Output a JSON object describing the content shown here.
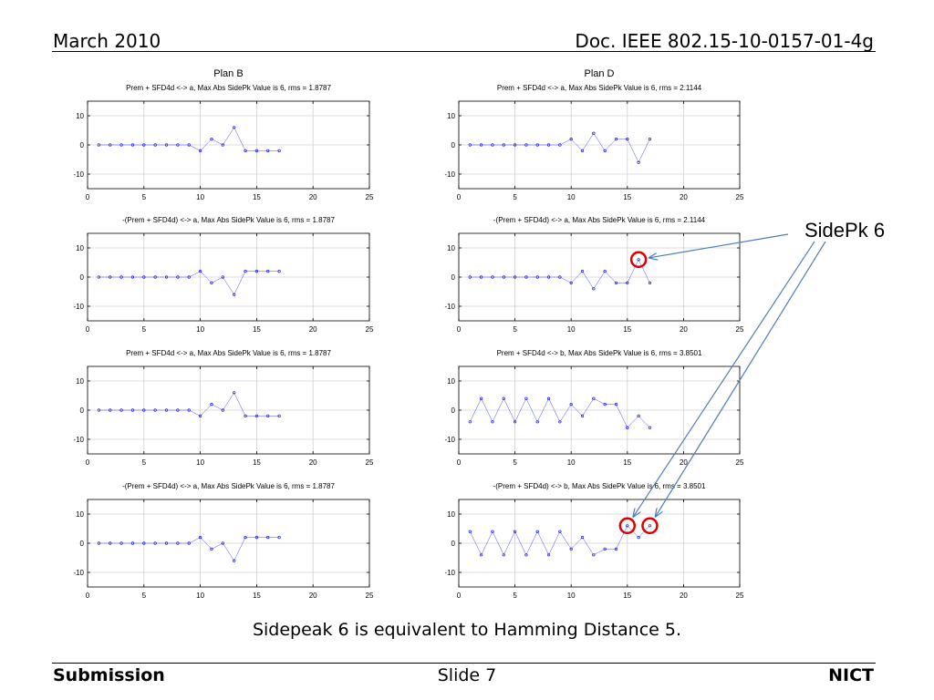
{
  "header": {
    "left": "March 2010",
    "right": "Doc. IEEE 802.15-10-0157-01-4g"
  },
  "footer": {
    "left": "Submission",
    "center": "Slide 7",
    "right": "NICT"
  },
  "caption": "Sidepeak 6 is equivalent to Hamming Distance 5.",
  "annotation": {
    "label": "SidePk 6",
    "arrow_color": "#4a7ebb",
    "circle_color": "#e00000"
  },
  "colors": {
    "series": "#0000ff",
    "grid": "#d0d0d0"
  },
  "chart_data": [
    {
      "type": "line",
      "heading": "Plan B",
      "title": "Prem + SFD4d <-> a, Max Abs SidePk Value is 6, rms = 1.8787",
      "xlim": [
        0,
        25
      ],
      "ylim": [
        -15,
        15
      ],
      "xticks": [
        0,
        5,
        10,
        15,
        20,
        25
      ],
      "yticks": [
        10,
        0,
        -10
      ],
      "grid": true,
      "x": [
        1,
        2,
        3,
        4,
        5,
        6,
        7,
        8,
        9,
        10,
        11,
        12,
        13,
        14,
        15,
        16,
        17
      ],
      "y": [
        0,
        0,
        0,
        0,
        0,
        0,
        0,
        0,
        0,
        -2,
        2,
        0,
        6,
        -2,
        -2,
        -2,
        -2
      ]
    },
    {
      "type": "line",
      "heading": "Plan D",
      "title": "Prem + SFD4d <-> a, Max Abs SidePk Value is 6, rms = 2.1144",
      "xlim": [
        0,
        25
      ],
      "ylim": [
        -15,
        15
      ],
      "xticks": [
        0,
        5,
        10,
        15,
        20,
        25
      ],
      "yticks": [
        10,
        0,
        -10
      ],
      "grid": true,
      "x": [
        1,
        2,
        3,
        4,
        5,
        6,
        7,
        8,
        9,
        10,
        11,
        12,
        13,
        14,
        15,
        16,
        17
      ],
      "y": [
        0,
        0,
        0,
        0,
        0,
        0,
        0,
        0,
        0,
        2,
        -2,
        4,
        -2,
        2,
        2,
        -6,
        2
      ]
    },
    {
      "type": "line",
      "heading": "",
      "title": "-(Prem + SFD4d) <-> a, Max Abs SidePk Value is 6, rms = 1.8787",
      "xlim": [
        0,
        25
      ],
      "ylim": [
        -15,
        15
      ],
      "xticks": [
        0,
        5,
        10,
        15,
        20,
        25
      ],
      "yticks": [
        10,
        0,
        -10
      ],
      "grid": true,
      "x": [
        1,
        2,
        3,
        4,
        5,
        6,
        7,
        8,
        9,
        10,
        11,
        12,
        13,
        14,
        15,
        16,
        17
      ],
      "y": [
        0,
        0,
        0,
        0,
        0,
        0,
        0,
        0,
        0,
        2,
        -2,
        0,
        -6,
        2,
        2,
        2,
        2
      ]
    },
    {
      "type": "line",
      "heading": "",
      "title": "-(Prem + SFD4d) <-> a, Max Abs SidePk Value is 6, rms = 2.1144",
      "xlim": [
        0,
        25
      ],
      "ylim": [
        -15,
        15
      ],
      "xticks": [
        0,
        5,
        10,
        15,
        20,
        25
      ],
      "yticks": [
        10,
        0,
        -10
      ],
      "grid": true,
      "x": [
        1,
        2,
        3,
        4,
        5,
        6,
        7,
        8,
        9,
        10,
        11,
        12,
        13,
        14,
        15,
        16,
        17
      ],
      "y": [
        0,
        0,
        0,
        0,
        0,
        0,
        0,
        0,
        0,
        -2,
        2,
        -4,
        2,
        -2,
        -2,
        6,
        -2
      ],
      "highlight_x": [
        16
      ]
    },
    {
      "type": "line",
      "heading": "",
      "title": "Prem + SFD4d <-> a, Max Abs SidePk Value is 6, rms = 1.8787",
      "xlim": [
        0,
        25
      ],
      "ylim": [
        -15,
        15
      ],
      "xticks": [
        0,
        5,
        10,
        15,
        20,
        25
      ],
      "yticks": [
        10,
        0,
        -10
      ],
      "grid": true,
      "x": [
        1,
        2,
        3,
        4,
        5,
        6,
        7,
        8,
        9,
        10,
        11,
        12,
        13,
        14,
        15,
        16,
        17
      ],
      "y": [
        0,
        0,
        0,
        0,
        0,
        0,
        0,
        0,
        0,
        -2,
        2,
        0,
        6,
        -2,
        -2,
        -2,
        -2
      ]
    },
    {
      "type": "line",
      "heading": "",
      "title": "Prem + SFD4d <-> b, Max Abs SidePk Value is 6, rms = 3.8501",
      "xlim": [
        0,
        25
      ],
      "ylim": [
        -15,
        15
      ],
      "xticks": [
        0,
        5,
        10,
        15,
        20,
        25
      ],
      "yticks": [
        10,
        0,
        -10
      ],
      "grid": true,
      "x": [
        1,
        2,
        3,
        4,
        5,
        6,
        7,
        8,
        9,
        10,
        11,
        12,
        13,
        14,
        15,
        16,
        17
      ],
      "y": [
        -4,
        4,
        -4,
        4,
        -4,
        4,
        -4,
        4,
        -4,
        2,
        -2,
        4,
        2,
        2,
        -6,
        -2,
        -6
      ]
    },
    {
      "type": "line",
      "heading": "",
      "title": "-(Prem + SFD4d) <-> a, Max Abs SidePk Value is 6, rms = 1.8787",
      "xlim": [
        0,
        25
      ],
      "ylim": [
        -15,
        15
      ],
      "xticks": [
        0,
        5,
        10,
        15,
        20,
        25
      ],
      "yticks": [
        10,
        0,
        -10
      ],
      "grid": true,
      "x": [
        1,
        2,
        3,
        4,
        5,
        6,
        7,
        8,
        9,
        10,
        11,
        12,
        13,
        14,
        15,
        16,
        17
      ],
      "y": [
        0,
        0,
        0,
        0,
        0,
        0,
        0,
        0,
        0,
        2,
        -2,
        0,
        -6,
        2,
        2,
        2,
        2
      ]
    },
    {
      "type": "line",
      "heading": "",
      "title": "-(Prem + SFD4d) <-> b, Max Abs SidePk Value is 6, rms = 3.8501",
      "xlim": [
        0,
        25
      ],
      "ylim": [
        -15,
        15
      ],
      "xticks": [
        0,
        5,
        10,
        15,
        20,
        25
      ],
      "yticks": [
        10,
        0,
        -10
      ],
      "grid": true,
      "x": [
        1,
        2,
        3,
        4,
        5,
        6,
        7,
        8,
        9,
        10,
        11,
        12,
        13,
        14,
        15,
        16,
        17
      ],
      "y": [
        4,
        -4,
        4,
        -4,
        4,
        -4,
        4,
        -4,
        4,
        -2,
        2,
        -4,
        -2,
        -2,
        6,
        2,
        6
      ],
      "highlight_x": [
        15,
        17
      ]
    }
  ]
}
